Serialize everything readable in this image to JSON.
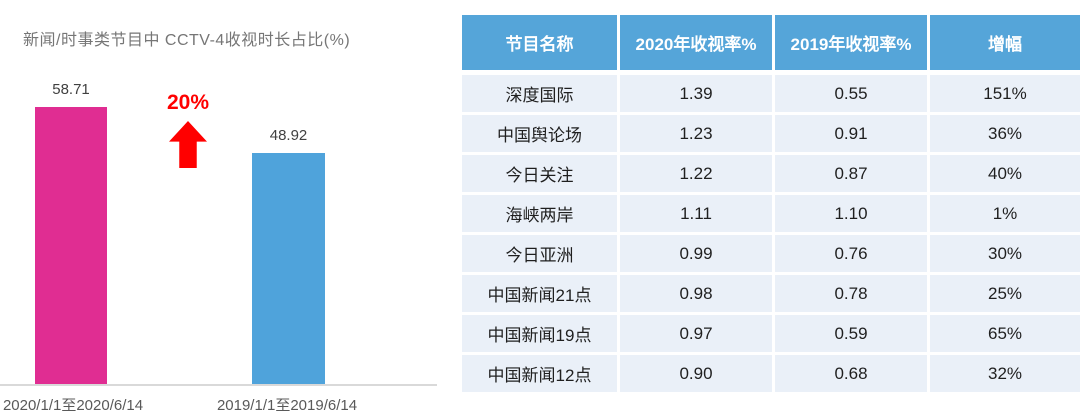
{
  "chart": {
    "title": "新闻/时事类节目中 CCTV-4收视时长占比(%)",
    "growth_label": "20%",
    "bars": [
      {
        "label": "2020/1/1至2020/6/14",
        "value": "58.71",
        "color": "#e02d92"
      },
      {
        "label": "2019/1/1至2019/6/14",
        "value": "48.92",
        "color": "#4fa3db"
      }
    ]
  },
  "table": {
    "headers": [
      "节目名称",
      "2020年收视率%",
      "2019年收视率%",
      "增幅"
    ],
    "rows": [
      [
        "深度国际",
        "1.39",
        "0.55",
        "151%"
      ],
      [
        "中国舆论场",
        "1.23",
        "0.91",
        "36%"
      ],
      [
        "今日关注",
        "1.22",
        "0.87",
        "40%"
      ],
      [
        "海峡两岸",
        "1.11",
        "1.10",
        "1%"
      ],
      [
        "今日亚洲",
        "0.99",
        "0.76",
        "30%"
      ],
      [
        "中国新闻21点",
        "0.98",
        "0.78",
        "25%"
      ],
      [
        "中国新闻19点",
        "0.97",
        "0.59",
        "65%"
      ],
      [
        "中国新闻12点",
        "0.90",
        "0.68",
        "32%"
      ]
    ],
    "header_bg": "#55a5d9",
    "row_bg": "#eaf0f8"
  },
  "colors": {
    "bar_2020": "#e02d92",
    "bar_2019": "#4fa3db",
    "growth_red": "#ff0000",
    "axis_line": "#d9d9d9",
    "title_text": "#767676"
  },
  "chart_data": [
    {
      "type": "bar",
      "title": "新闻/时事类节目中 CCTV-4收视时长占比(%)",
      "categories": [
        "2020/1/1至2020/6/14",
        "2019/1/1至2019/6/14"
      ],
      "values": [
        58.71,
        48.92
      ],
      "series_colors": [
        "#e02d92",
        "#4fa3db"
      ],
      "annotations": [
        "20%"
      ],
      "ylim": [
        0,
        65
      ],
      "grid": false,
      "legend": false
    },
    {
      "type": "table",
      "columns": [
        "节目名称",
        "2020年收视率%",
        "2019年收视率%",
        "增幅"
      ],
      "rows": [
        [
          "深度国际",
          "1.39",
          "0.55",
          "151%"
        ],
        [
          "中国舆论场",
          "1.23",
          "0.91",
          "36%"
        ],
        [
          "今日关注",
          "1.22",
          "0.87",
          "40%"
        ],
        [
          "海峡两岸",
          "1.11",
          "1.10",
          "1%"
        ],
        [
          "今日亚洲",
          "0.99",
          "0.76",
          "30%"
        ],
        [
          "中国新闻21点",
          "0.98",
          "0.78",
          "25%"
        ],
        [
          "中国新闻19点",
          "0.97",
          "0.59",
          "65%"
        ],
        [
          "中国新闻12点",
          "0.90",
          "0.68",
          "32%"
        ]
      ]
    }
  ]
}
